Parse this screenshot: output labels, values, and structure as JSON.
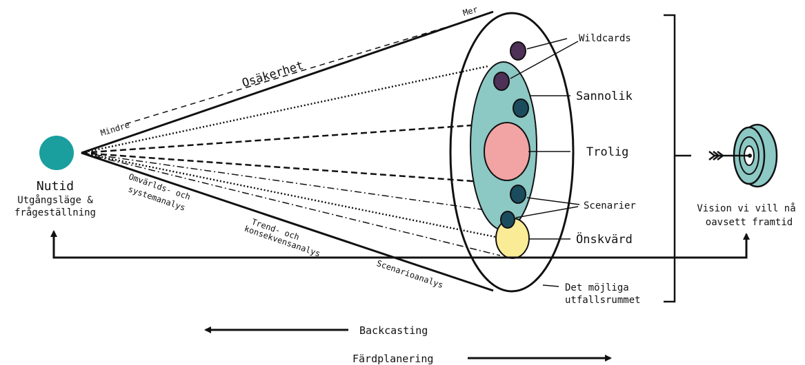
{
  "colors": {
    "teal": "#1A9E9E",
    "light_teal": "#8CC8C4",
    "pink": "#F2A3A3",
    "yellow": "#FAEB96",
    "purple": "#4E3156",
    "dark_teal": "#1B4C5E",
    "line": "#111111"
  },
  "nutid": {
    "title": "Nutid",
    "line1": "Utgångsläge &",
    "line2": "frågeställning"
  },
  "uncertainty": {
    "label": "Osäkerhet",
    "less": "Mindre",
    "more": "Mer"
  },
  "methods": {
    "omvarld_line1": "Omvärlds- och",
    "omvarld_line2": "systemanalys",
    "trend_line1": "Trend- och",
    "trend_line2": "konsekvensanalys",
    "scenario": "Scenarioanalys"
  },
  "futures": {
    "wildcards": "Wildcards",
    "sannolik": "Sannolik",
    "trolig": "Trolig",
    "scenarier": "Scenarier",
    "onskvard": "Önskvärd",
    "mojliga_line1": "Det möjliga",
    "mojliga_line2": "utfallsrummet"
  },
  "vision": {
    "line1": "Vision vi vill nå",
    "line2": "oavsett framtid",
    "icon": "target-arrow-icon"
  },
  "arrows": {
    "backcasting": "Backcasting",
    "fardplanering": "Färdplanering"
  }
}
